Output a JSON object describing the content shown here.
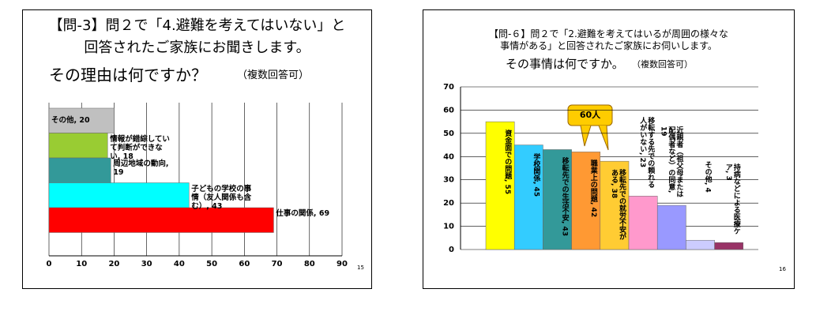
{
  "chart_data": [
    {
      "type": "bar",
      "orientation": "horizontal",
      "title": [
        "【問-3】問２で「4.避難を考えてはいない」と",
        "回答されたご家族にお聞きします。",
        "その理由は何ですか？"
      ],
      "subtitle": "（複数回答可）",
      "values": [
        20,
        18,
        19,
        43,
        69
      ],
      "value_labels": [
        "その他, 20",
        "情報が錯綜していて判断ができない, 18",
        "周辺地域の動向, 19",
        "子どもの学校の事情（友人関係も含む）, 43",
        "仕事の関係, 69"
      ],
      "colors": [
        "#c0c0c0",
        "#99cc33",
        "#339999",
        "#00ffff",
        "#ff0000"
      ],
      "xlim": [
        0,
        90
      ],
      "xticks": [
        0,
        10,
        20,
        30,
        40,
        50,
        60,
        70,
        80,
        90
      ],
      "grid": true,
      "page_number": "15"
    },
    {
      "type": "bar",
      "orientation": "vertical",
      "title": [
        "【問-６】問２で「2.避難を考えてはいるが周囲の様々な",
        "事情がある」と回答されたご家族にお伺いします。",
        "その事情は何ですか。"
      ],
      "subtitle": "（複数回答可）",
      "values": [
        55,
        45,
        43,
        42,
        38,
        23,
        19,
        4,
        3
      ],
      "value_labels": [
        "資金面での問題, 55",
        "学校関係, 45",
        "移転先での生活不安, 43",
        "職業上の問題, 42",
        "移転先での就労不安がある, 38",
        "移転する先での頼れる人がいない, 23",
        "近親者（祖父母または配偶者など）の同意, 19",
        "その他, 4",
        "持病などによる医療ケア, 3"
      ],
      "colors": [
        "#ffff00",
        "#33ccff",
        "#339999",
        "#ff9933",
        "#ffcc33",
        "#ff99cc",
        "#9999ff",
        "#ccccff",
        "#993366"
      ],
      "ylim": [
        0,
        70
      ],
      "yticks": [
        0,
        10,
        20,
        30,
        40,
        50,
        60,
        70
      ],
      "grid": true,
      "annotation": "60人",
      "page_number": "16"
    }
  ]
}
